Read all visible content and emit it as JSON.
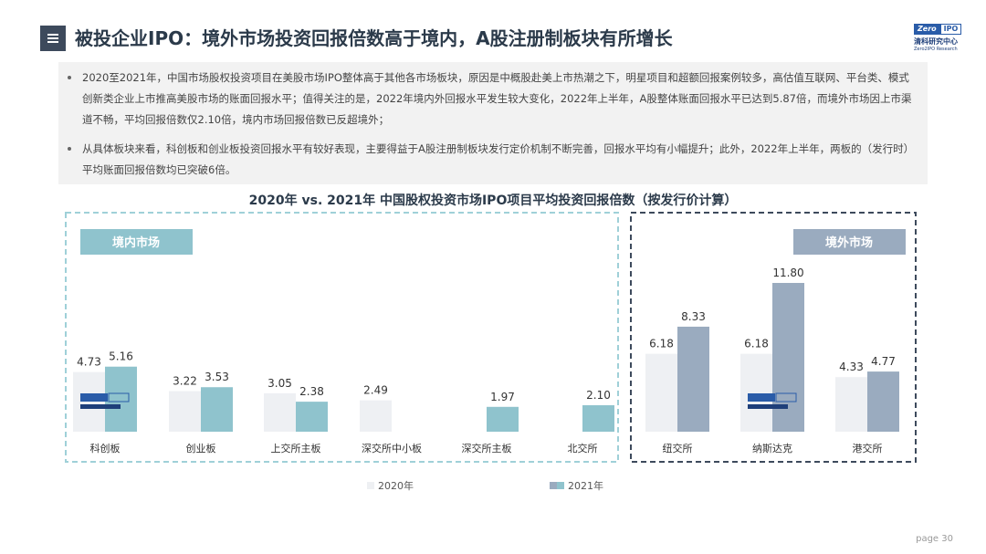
{
  "header": {
    "title": "被投企业IPO：境外市场投资回报倍数高于境内，A股注册制板块有所增长",
    "logo_zero": "Zero",
    "logo_ipo": "IPO",
    "logo_cn": "清科研究中心",
    "logo_en": "Zero2IPO Research"
  },
  "bullets": [
    "2020至2021年，中国市场股权投资项目在美股市场IPO整体高于其他各市场板块，原因是中概股赴美上市热潮之下，明星项目和超额回报案例较多，高估值互联网、平台类、模式创新类企业上市推高美股市场的账面回报水平；值得关注的是，2022年境内外回报水平发生较大变化，2022年上半年，A股整体账面回报水平已达到5.87倍，而境外市场因上市渠道不畅，平均回报倍数仅2.10倍，境内市场回报倍数已反超境外；",
    "从具体板块来看，科创板和创业板投资回报水平有较好表现，主要得益于A股注册制板块发行定价机制不断完善，回报水平均有小幅提升；此外，2022年上半年，两板的（发行时）平均账面回报倍数均已突破6倍。"
  ],
  "footer": {
    "page": "page  30"
  },
  "chart_data": {
    "type": "bar",
    "title": "2020年 vs. 2021年 中国股权投资市场IPO项目平均投资回报倍数（按发行价计算）",
    "categories": [
      "科创板",
      "创业板",
      "上交所主板",
      "深交所中小板",
      "深交所主板",
      "北交所",
      "纽交所",
      "纳斯达克",
      "港交所"
    ],
    "groups": [
      {
        "label": "境内市场",
        "categories": [
          "科创板",
          "创业板",
          "上交所主板",
          "深交所中小板",
          "深交所主板",
          "北交所"
        ]
      },
      {
        "label": "境外市场",
        "categories": [
          "纽交所",
          "纳斯达克",
          "港交所"
        ]
      }
    ],
    "series": [
      {
        "name": "2020年",
        "values": [
          4.73,
          3.22,
          3.05,
          2.49,
          null,
          null,
          6.18,
          6.18,
          4.33
        ]
      },
      {
        "name": "2021年",
        "values": [
          5.16,
          3.53,
          2.38,
          null,
          1.97,
          2.1,
          8.33,
          11.8,
          4.77
        ]
      }
    ],
    "value_labels": [
      [
        "4.73",
        "3.22",
        "3.05",
        "2.49",
        "",
        "",
        "6.18",
        "6.18",
        "4.33"
      ],
      [
        "5.16",
        "3.53",
        "2.38",
        "",
        "1.97",
        "2.10",
        "8.33",
        "11.80",
        "4.77"
      ]
    ],
    "legend_position": "bottom",
    "grid": false,
    "ylim": [
      0,
      12
    ],
    "colors": {
      "s2020": "#eef0f3",
      "s2021_domestic": "#8fc3cd",
      "s2021_overseas": "#9aabbf",
      "domestic_box": "#9fd0d8",
      "overseas_box": "#3d4a5c",
      "domestic_tag": "#8fc3cd",
      "overseas_tag": "#9aabbf"
    }
  }
}
